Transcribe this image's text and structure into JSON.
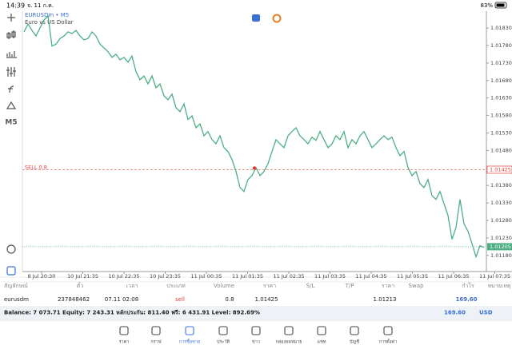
{
  "status": {
    "time": "14:39",
    "date": "จ. 11 ก.ค.",
    "battery": "83%"
  },
  "toolbar": {
    "timeframe": "M5"
  },
  "chart": {
    "symbol": "EURUSDm • M5",
    "description": "Euro vs US Dollar",
    "order_label": "SELL 0.8",
    "ylim": [
      1.01134,
      1.01878
    ],
    "yticks": [
      {
        "value": 1.0118,
        "label": "1.01180"
      },
      {
        "value": 1.0123,
        "label": "1.01230"
      },
      {
        "value": 1.0128,
        "label": "1.01280"
      },
      {
        "value": 1.0133,
        "label": "1.01330"
      },
      {
        "value": 1.0138,
        "label": "1.01380"
      },
      {
        "value": 1.0148,
        "label": "1.01480"
      },
      {
        "value": 1.0153,
        "label": "1.01530"
      },
      {
        "value": 1.0158,
        "label": "1.01580"
      },
      {
        "value": 1.0163,
        "label": "1.01630"
      },
      {
        "value": 1.0168,
        "label": "1.01680"
      },
      {
        "value": 1.0173,
        "label": "1.01730"
      },
      {
        "value": 1.0178,
        "label": "1.01780"
      },
      {
        "value": 1.0183,
        "label": "1.01830"
      }
    ],
    "order_price": 1.01425,
    "current_price": 1.01205,
    "color": "#4caf84",
    "xlabels": [
      "8 Jul 20:30",
      "10 Jul 21:35",
      "10 Jul 22:35",
      "10 Jul 23:35",
      "11 Jul 00:35",
      "11 Jul 01:35",
      "11 Jul 02:35",
      "11 Jul 03:35",
      "11 Jul 04:35",
      "11 Jul 05:35",
      "11 Jul 06:35",
      "11 Jul 07:35"
    ],
    "values": [
      1.01819,
      1.01841,
      1.01823,
      1.01807,
      1.0183,
      1.01853,
      1.01864,
      1.01778,
      1.01784,
      1.018,
      1.01807,
      1.01819,
      1.01814,
      1.01823,
      1.01807,
      1.01796,
      1.018,
      1.01819,
      1.01807,
      1.01784,
      1.01773,
      1.01762,
      1.01746,
      1.01755,
      1.01739,
      1.01746,
      1.01732,
      1.0175,
      1.01705,
      1.01682,
      1.01693,
      1.0167,
      1.01693,
      1.01659,
      1.0167,
      1.01636,
      1.01625,
      1.01641,
      1.01602,
      1.01591,
      1.01613,
      1.01568,
      1.01579,
      1.01545,
      1.01556,
      1.01522,
      1.01534,
      1.01511,
      1.01499,
      1.01522,
      1.01488,
      1.01477,
      1.01454,
      1.0142,
      1.01374,
      1.01363,
      1.01397,
      1.01408,
      1.01431,
      1.01408,
      1.0142,
      1.01442,
      1.01477,
      1.01511,
      1.01499,
      1.01488,
      1.01522,
      1.01534,
      1.01545,
      1.01522,
      1.01511,
      1.01499,
      1.01518,
      1.01509,
      1.01534,
      1.01511,
      1.01488,
      1.01499,
      1.01522,
      1.01511,
      1.01534,
      1.01488,
      1.01511,
      1.01499,
      1.01522,
      1.01534,
      1.01511,
      1.01488,
      1.01499,
      1.01511,
      1.01522,
      1.01511,
      1.01518,
      1.01488,
      1.01465,
      1.01477,
      1.01431,
      1.01408,
      1.0142,
      1.01385,
      1.01374,
      1.01397,
      1.01351,
      1.0134,
      1.01363,
      1.01328,
      1.01294,
      1.01226,
      1.0126,
      1.0134,
      1.01271,
      1.01249,
      1.01214,
      1.01176,
      1.01208,
      1.01203
    ]
  },
  "table": {
    "headers": [
      "สัญลักษณ์",
      "ตั๋ว",
      "เวลา",
      "ประเภท",
      "Volume",
      "ราคา",
      "S/L",
      "T/P",
      "ราคา",
      "Swap",
      "กำไร",
      "หมายเหตุ"
    ],
    "rows": [
      [
        "eurusdm",
        "237848462",
        "07.11 02:08",
        "sell",
        "0.8",
        "1.01425",
        "",
        "",
        "1.01213",
        "",
        "169.60",
        ""
      ]
    ]
  },
  "balance": {
    "text": "Balance: 7 073.71 Equity: 7 243.31 หลักประกัน: 811.40 ฟรี: 6 431.91 Level: 892.69%",
    "profit": "169.60",
    "currency": "USD"
  },
  "tabs": [
    "ราคา",
    "กราฟ",
    "การซื้อขาย",
    "ประวัติ",
    "ข่าว",
    "กล่องจดหมาย",
    "แชท",
    "บัญชี",
    "การตั้งค่า"
  ]
}
